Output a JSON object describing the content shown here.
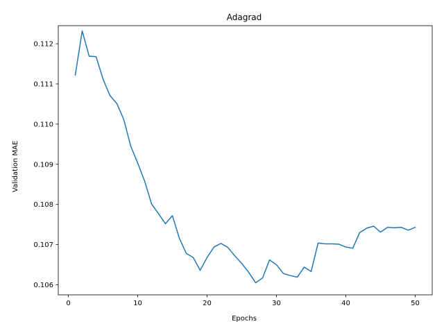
{
  "chart_data": {
    "type": "line",
    "title": "Adagrad",
    "xlabel": "Epochs",
    "ylabel": "Validation MAE",
    "xlim": [
      -1.45,
      52.45
    ],
    "ylim": [
      0.10575,
      0.11245
    ],
    "xticks": [
      0,
      10,
      20,
      30,
      40,
      50
    ],
    "xtick_labels": [
      "0",
      "10",
      "20",
      "30",
      "40",
      "50"
    ],
    "yticks": [
      0.106,
      0.107,
      0.108,
      0.109,
      0.11,
      0.111,
      0.112
    ],
    "ytick_labels": [
      "0.106",
      "0.107",
      "0.108",
      "0.109",
      "0.110",
      "0.111",
      "0.112"
    ],
    "grid": false,
    "series": [
      {
        "color": "#1f77b4",
        "x": [
          1,
          2,
          3,
          4,
          5,
          6,
          7,
          8,
          9,
          10,
          11,
          12,
          13,
          14,
          15,
          16,
          17,
          18,
          19,
          20,
          21,
          22,
          23,
          24,
          25,
          26,
          27,
          28,
          29,
          30,
          31,
          32,
          33,
          34,
          35,
          36,
          37,
          38,
          39,
          40,
          41,
          42,
          43,
          44,
          45,
          46,
          47,
          48,
          49,
          50
        ],
        "y": [
          0.11122,
          0.11232,
          0.11169,
          0.11168,
          0.11112,
          0.11071,
          0.11051,
          0.11011,
          0.10945,
          0.10903,
          0.10858,
          0.10801,
          0.10777,
          0.10752,
          0.10772,
          0.10716,
          0.10678,
          0.10668,
          0.10636,
          0.10668,
          0.10694,
          0.10703,
          0.10693,
          0.10672,
          0.10653,
          0.10631,
          0.10605,
          0.10617,
          0.10662,
          0.1065,
          0.10628,
          0.10623,
          0.10619,
          0.10644,
          0.10633,
          0.10704,
          0.10702,
          0.10702,
          0.10701,
          0.10694,
          0.10691,
          0.1073,
          0.10741,
          0.10746,
          0.10731,
          0.10743,
          0.10742,
          0.10743,
          0.10736,
          0.10743
        ]
      }
    ]
  }
}
